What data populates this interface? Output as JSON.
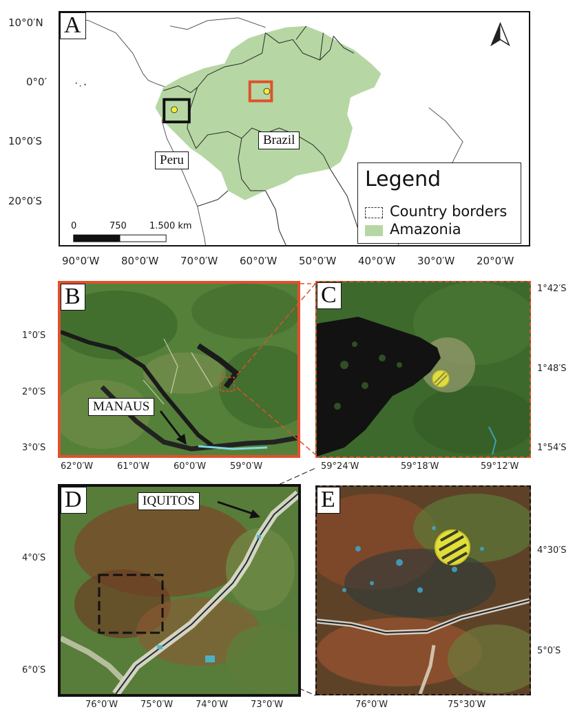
{
  "panels": {
    "a": {
      "label": "A",
      "country_labels": [
        "Peru",
        "Brazil"
      ],
      "lat_ticks": [
        "10°0′N",
        "0°0′",
        "10°0′S",
        "20°0′S"
      ],
      "lon_ticks": [
        "90°0′W",
        "80°0′W",
        "70°0′W",
        "60°0′W",
        "50°0′W",
        "40°0′W",
        "30°0′W",
        "20°0′W"
      ]
    },
    "b": {
      "label": "B",
      "city": "MANAUS",
      "lat_ticks": [
        "1°0′S",
        "2°0′S",
        "3°0′S"
      ],
      "lon_ticks": [
        "62°0′W",
        "61°0′W",
        "60°0′W",
        "59°0′W"
      ]
    },
    "c": {
      "label": "C",
      "lat_ticks": [
        "1°42′S",
        "1°48′S",
        "1°54′S"
      ],
      "lon_ticks": [
        "59°24′W",
        "59°18′W",
        "59°12′W"
      ]
    },
    "d": {
      "label": "D",
      "city": "IQUITOS",
      "lat_ticks": [
        "4°0′S",
        "6°0′S"
      ],
      "lon_ticks": [
        "76°0′W",
        "75°0′W",
        "74°0′W",
        "73°0′W"
      ]
    },
    "e": {
      "label": "E",
      "lat_ticks": [
        "4°30′S",
        "5°0′S"
      ],
      "lon_ticks": [
        "76°0′W",
        "75°30′W"
      ]
    }
  },
  "legend": {
    "title": "Legend",
    "items": [
      "Country borders",
      "Amazonia"
    ]
  },
  "scale_bar": {
    "labels": [
      "0",
      "750",
      "1.500 km"
    ]
  },
  "colors": {
    "amazonia": "#b6d7a3",
    "box_b": "#e0502c",
    "box_d": "#111111",
    "site": "#f1ec3a"
  },
  "icons": [
    "north-arrow-icon"
  ]
}
